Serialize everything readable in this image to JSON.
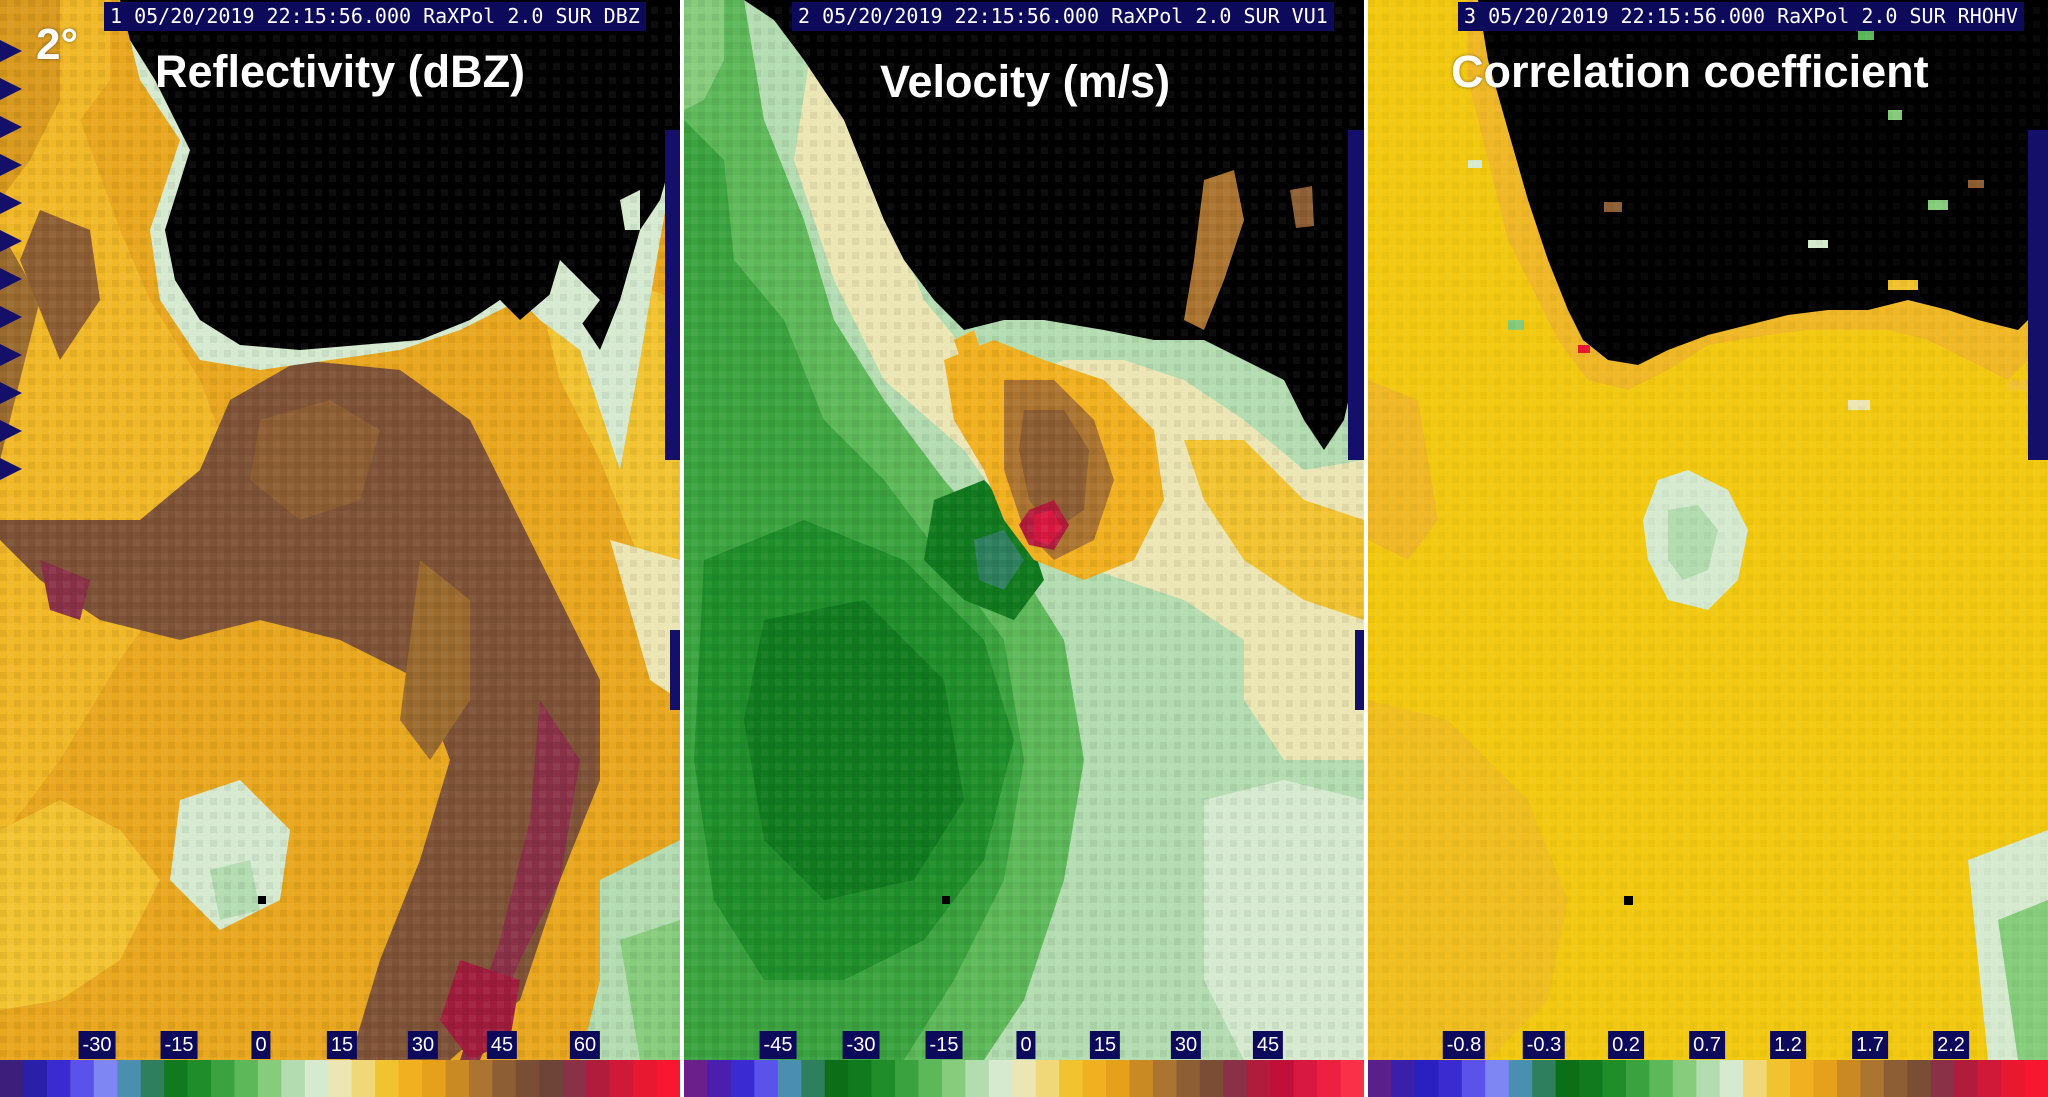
{
  "elevation_label": "2°",
  "colors": {
    "header_bg": "#0d0a5c",
    "no_data": "#000000",
    "range_marker": "#14106a"
  },
  "panels": [
    {
      "id": "reflectivity",
      "header": "1 05/20/2019 22:15:56.000 RaXPol 2.0 SUR DBZ",
      "title": "Reflectivity (dBZ)",
      "colorbar": {
        "tick_labels": [
          "-30",
          "-15",
          "0",
          "15",
          "30",
          "45",
          "60"
        ],
        "colors": [
          "#3b1f7a",
          "#2a1fa8",
          "#3a2bd0",
          "#5a52ea",
          "#7d86f2",
          "#4a8fb0",
          "#2e7f5e",
          "#117a1f",
          "#1f8e2a",
          "#3aa340",
          "#5db85a",
          "#86cc7c",
          "#b3dcb0",
          "#d6ead0",
          "#ece6b4",
          "#f0d878",
          "#f2c330",
          "#f0b020",
          "#e6a01a",
          "#c98a24",
          "#ab7430",
          "#8d5e33",
          "#7a4e35",
          "#6e4338",
          "#8a3148",
          "#b21c3c",
          "#d01838",
          "#e81830",
          "#f71830"
        ]
      }
    },
    {
      "id": "velocity",
      "header": "2 05/20/2019 22:15:56.000 RaXPol 2.0 SUR VU1",
      "title": "Velocity (m/s)",
      "colorbar": {
        "tick_labels": [
          "-45",
          "-30",
          "-15",
          "0",
          "15",
          "30",
          "45"
        ],
        "colors": [
          "#6a1f8a",
          "#4a1fb0",
          "#3a2bd0",
          "#5a52ea",
          "#4a8fb0",
          "#2e7f5e",
          "#0c6e16",
          "#117a1f",
          "#1f8e2a",
          "#3aa340",
          "#5db85a",
          "#86cc7c",
          "#b3dcb0",
          "#d6ead0",
          "#ece6b4",
          "#f0d878",
          "#f2c330",
          "#f0b020",
          "#e6a01a",
          "#c98a24",
          "#ab7430",
          "#8d5e33",
          "#7a4e35",
          "#8a3148",
          "#b21c3c",
          "#c0103a",
          "#d81840",
          "#ee2040",
          "#f93048"
        ]
      }
    },
    {
      "id": "correlation",
      "header": "3 05/20/2019 22:15:56.000 RaXPol 2.0 SUR RHOHV",
      "title": "Correlation coefficient",
      "colorbar": {
        "tick_labels": [
          "-0.8",
          "-0.3",
          "0.2",
          "0.7",
          "1.2",
          "1.7",
          "2.2"
        ],
        "colors": [
          "#5a1f8a",
          "#3a1fa8",
          "#2a1fc0",
          "#3a2bd0",
          "#5a52ea",
          "#7d86f2",
          "#4a8fb0",
          "#2e7f5e",
          "#0c6e16",
          "#117a1f",
          "#1f8e2a",
          "#3aa340",
          "#5db85a",
          "#86cc7c",
          "#b3dcb0",
          "#d6ead0",
          "#f0d878",
          "#f2c330",
          "#f0b020",
          "#e6a01a",
          "#c98a24",
          "#ab7430",
          "#8d5e33",
          "#7a4e35",
          "#8a3148",
          "#b21c3c",
          "#d01838",
          "#e81830",
          "#f71830"
        ]
      }
    }
  ]
}
